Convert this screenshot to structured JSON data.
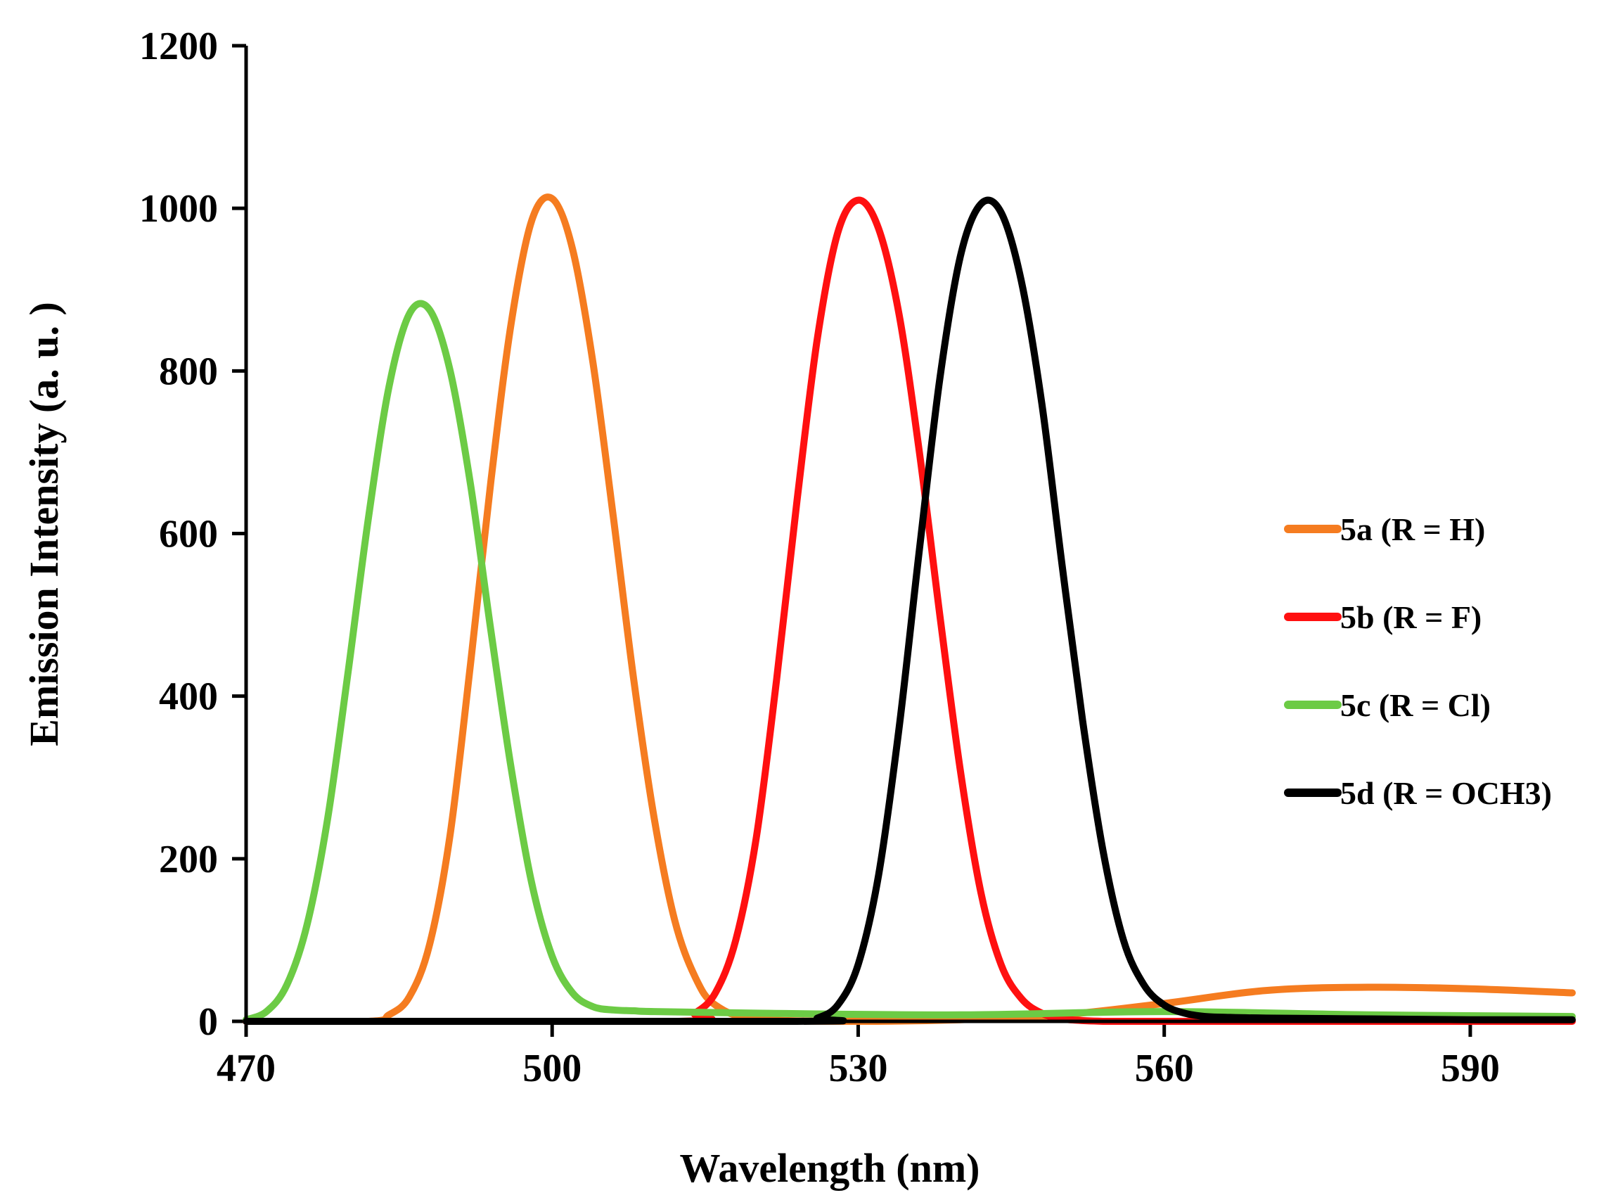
{
  "chart_data": {
    "type": "line",
    "title": "",
    "xlabel": "Wavelength (nm)",
    "ylabel": "Emission Intensity (a. u. )",
    "xlim": [
      470,
      600
    ],
    "ylim": [
      0,
      1200
    ],
    "xticks": [
      470,
      500,
      530,
      560,
      590
    ],
    "yticks": [
      0,
      200,
      400,
      600,
      800,
      1000,
      1200
    ],
    "grid": false,
    "legend_position": "right",
    "series": [
      {
        "name": "5a (R = H)",
        "color": "#F57C20",
        "x": [
          470,
          482,
          484,
          486,
          488,
          490,
          492,
          494,
          496,
          498,
          500,
          502,
          504,
          506,
          508,
          510,
          512,
          514,
          516,
          520,
          530,
          540,
          550,
          560,
          570,
          580,
          590,
          600
        ],
        "y": [
          0,
          0,
          8,
          30,
          95,
          230,
          440,
          665,
          860,
          985,
          1012,
          950,
          810,
          620,
          420,
          250,
          125,
          55,
          20,
          3,
          0,
          2,
          8,
          22,
          38,
          42,
          40,
          35
        ]
      },
      {
        "name": "5b (R = F)",
        "color": "#FF1010",
        "x": [
          470,
          512,
          514,
          516,
          518,
          520,
          522,
          524,
          526,
          528,
          530,
          532,
          534,
          536,
          538,
          540,
          542,
          544,
          546,
          548,
          550,
          554,
          560,
          600
        ],
        "y": [
          0,
          0,
          10,
          35,
          100,
          225,
          420,
          640,
          840,
          970,
          1010,
          975,
          870,
          700,
          500,
          310,
          160,
          70,
          28,
          10,
          3,
          0,
          0,
          0
        ]
      },
      {
        "name": "5c (R = Cl)",
        "color": "#6CCB45",
        "x": [
          470,
          472,
          474,
          476,
          478,
          480,
          482,
          484,
          486,
          488,
          490,
          492,
          494,
          496,
          498,
          500,
          502,
          504,
          506,
          508,
          510,
          520,
          540,
          560,
          580,
          600
        ],
        "y": [
          2,
          12,
          45,
          120,
          250,
          430,
          620,
          780,
          870,
          875,
          800,
          660,
          480,
          310,
          170,
          80,
          35,
          18,
          14,
          13,
          12,
          10,
          8,
          12,
          8,
          6
        ]
      },
      {
        "name": "5d (R = OCH3)",
        "color": "#000000",
        "x": [
          470,
          524,
          526,
          528,
          530,
          532,
          534,
          536,
          538,
          540,
          542,
          544,
          546,
          548,
          550,
          552,
          554,
          556,
          558,
          560,
          562,
          564,
          566,
          570,
          580,
          590,
          600
        ],
        "y": [
          0,
          0,
          4,
          20,
          70,
          180,
          360,
          580,
          790,
          940,
          1005,
          995,
          910,
          760,
          560,
          370,
          210,
          100,
          45,
          20,
          10,
          6,
          5,
          4,
          3,
          2,
          2
        ]
      }
    ]
  }
}
